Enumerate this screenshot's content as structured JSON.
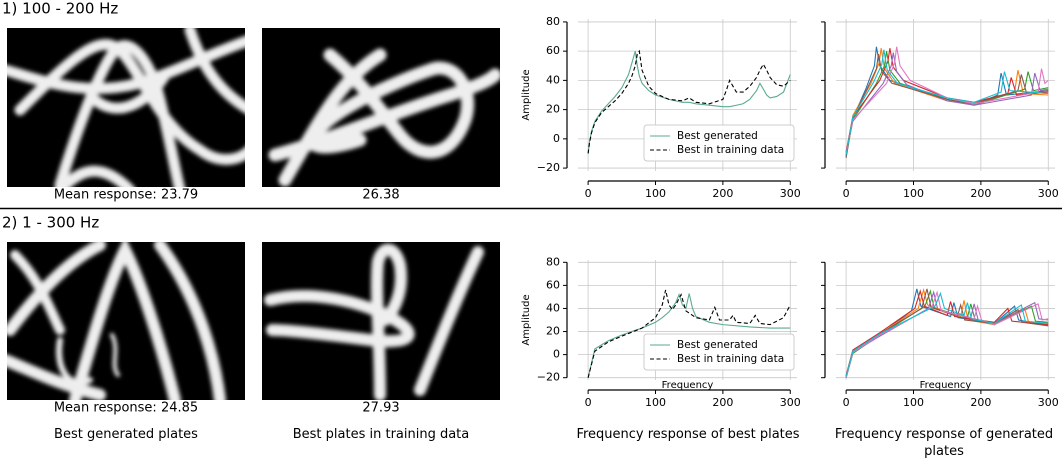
{
  "rows": [
    {
      "label": "1) 100 - 200 Hz",
      "generated_caption": "Mean response: 23.79",
      "training_caption": "26.38"
    },
    {
      "label": "2) 1 - 300 Hz",
      "generated_caption": "Mean response: 24.85",
      "training_caption": "27.93"
    }
  ],
  "column_captions": [
    "Best generated plates",
    "Best plates in training data",
    "Frequency response of best plates",
    "Frequency response of generated plates"
  ],
  "chart_data": [
    {
      "type": "line",
      "ylabel": "Amplitude",
      "xlim": [
        -15,
        310
      ],
      "ylim": [
        -22,
        82
      ],
      "xticks": [
        0,
        100,
        200,
        300
      ],
      "yticks": [
        {
          "value": -20,
          "label": "−20"
        },
        0,
        20,
        40,
        60,
        80
      ],
      "show_ytick_labels": true,
      "grid": true,
      "legend": "lower right",
      "series": [
        {
          "name": "Best generated",
          "color": "#5aab8c",
          "dash": false,
          "x": [
            0,
            2,
            5,
            10,
            20,
            30,
            40,
            50,
            60,
            65,
            70,
            73,
            76,
            80,
            90,
            100,
            120,
            140,
            150,
            160,
            180,
            200,
            205,
            210,
            220,
            230,
            240,
            250,
            255,
            260,
            265,
            270,
            280,
            290,
            300
          ],
          "values": [
            -10,
            -2,
            5,
            12,
            19,
            24,
            29,
            35,
            44,
            52,
            60,
            50,
            43,
            38,
            33,
            30,
            27,
            25,
            25,
            24,
            23,
            22,
            22,
            22,
            23,
            24,
            27,
            33,
            38,
            34,
            30,
            28,
            29,
            32,
            44
          ]
        },
        {
          "name": "Best in training data",
          "color": "#000000",
          "dash": true,
          "x": [
            0,
            2,
            5,
            10,
            20,
            30,
            40,
            50,
            60,
            65,
            70,
            73,
            76,
            80,
            90,
            100,
            120,
            140,
            150,
            160,
            180,
            200,
            205,
            210,
            220,
            230,
            240,
            250,
            255,
            260,
            265,
            270,
            280,
            290,
            300
          ],
          "values": [
            -10,
            -3,
            4,
            11,
            18,
            22,
            26,
            31,
            38,
            43,
            50,
            58,
            60,
            47,
            36,
            31,
            27,
            26,
            28,
            25,
            24,
            27,
            33,
            40,
            32,
            32,
            36,
            42,
            47,
            51,
            47,
            42,
            37,
            36,
            40
          ]
        }
      ]
    },
    {
      "type": "line",
      "xlim": [
        -15,
        310
      ],
      "ylim": [
        -22,
        82
      ],
      "xticks": [
        0,
        100,
        200,
        300
      ],
      "yticks": [
        {
          "value": -20,
          "label": "−20"
        },
        0,
        20,
        40,
        60,
        80
      ],
      "show_ytick_labels": false,
      "grid": true,
      "series": [
        {
          "color": "#1f77b4",
          "x": [
            0,
            10,
            30,
            42,
            45,
            50,
            65,
            150,
            190,
            225,
            230,
            238,
            300
          ],
          "values": [
            -12,
            14,
            35,
            50,
            63,
            50,
            40,
            27,
            23,
            30,
            45,
            30,
            33
          ]
        },
        {
          "color": "#ff7f0e",
          "x": [
            0,
            10,
            37,
            49,
            52,
            57,
            72,
            150,
            190,
            250,
            255,
            263,
            300
          ],
          "values": [
            -10,
            16,
            38,
            52,
            62,
            48,
            38,
            26,
            24,
            32,
            47,
            31,
            30
          ]
        },
        {
          "color": "#2ca02c",
          "x": [
            0,
            10,
            45,
            57,
            60,
            65,
            80,
            150,
            190,
            265,
            270,
            278,
            300
          ],
          "values": [
            -11,
            13,
            38,
            50,
            60,
            47,
            38,
            27,
            23,
            34,
            46,
            33,
            35
          ]
        },
        {
          "color": "#d62728",
          "x": [
            0,
            10,
            50,
            62,
            65,
            70,
            85,
            150,
            190,
            240,
            245,
            253,
            300
          ],
          "values": [
            -9,
            15,
            40,
            53,
            62,
            49,
            40,
            28,
            25,
            31,
            42,
            30,
            32
          ]
        },
        {
          "color": "#9467bd",
          "x": [
            0,
            10,
            55,
            67,
            70,
            75,
            90,
            150,
            190,
            275,
            280,
            288,
            300
          ],
          "values": [
            -10,
            12,
            38,
            50,
            59,
            46,
            37,
            26,
            23,
            30,
            45,
            33,
            34
          ]
        },
        {
          "color": "#8c564b",
          "x": [
            0,
            10,
            33,
            45,
            48,
            53,
            68,
            150,
            190,
            255,
            260,
            268,
            300
          ],
          "values": [
            -13,
            14,
            36,
            48,
            58,
            46,
            38,
            27,
            24,
            33,
            44,
            31,
            33
          ]
        },
        {
          "color": "#e377c2",
          "x": [
            0,
            10,
            60,
            72,
            75,
            80,
            95,
            150,
            190,
            285,
            290,
            295,
            300
          ],
          "values": [
            -10,
            13,
            38,
            52,
            63,
            50,
            40,
            28,
            24,
            32,
            48,
            38,
            40
          ]
        },
        {
          "color": "#17becf",
          "x": [
            0,
            10,
            41,
            53,
            56,
            61,
            76,
            150,
            190,
            230,
            235,
            243,
            300
          ],
          "values": [
            -11,
            15,
            39,
            51,
            61,
            47,
            38,
            28,
            25,
            32,
            46,
            33,
            31
          ]
        }
      ]
    },
    {
      "type": "line",
      "ylabel": "Amplitude",
      "xlabel": "Frequency",
      "xlim": [
        -15,
        310
      ],
      "ylim": [
        -22,
        82
      ],
      "xticks": [
        0,
        100,
        200,
        300
      ],
      "yticks": [
        {
          "value": -20,
          "label": "−20"
        },
        0,
        20,
        40,
        60,
        80
      ],
      "show_ytick_labels": true,
      "grid": true,
      "legend": "lower right",
      "series": [
        {
          "name": "Best generated",
          "color": "#5aab8c",
          "dash": false,
          "x": [
            0,
            10,
            30,
            50,
            80,
            100,
            110,
            120,
            130,
            135,
            140,
            145,
            150,
            155,
            160,
            180,
            200,
            240,
            270,
            300
          ],
          "values": [
            -20,
            5,
            12,
            17,
            23,
            28,
            32,
            37,
            45,
            52,
            43,
            40,
            53,
            40,
            33,
            28,
            26,
            24,
            23,
            23
          ]
        },
        {
          "name": "Best in training data",
          "color": "#000000",
          "dash": true,
          "x": [
            0,
            10,
            30,
            50,
            80,
            100,
            110,
            115,
            120,
            125,
            130,
            138,
            145,
            160,
            180,
            188,
            195,
            210,
            215,
            220,
            240,
            248,
            255,
            270,
            290,
            300
          ],
          "values": [
            -20,
            3,
            11,
            16,
            23,
            32,
            43,
            56,
            43,
            39,
            43,
            52,
            38,
            32,
            30,
            41,
            30,
            30,
            34,
            28,
            27,
            34,
            27,
            26,
            32,
            43
          ]
        }
      ]
    },
    {
      "type": "line",
      "xlabel": "Frequency",
      "xlim": [
        -15,
        310
      ],
      "ylim": [
        -22,
        82
      ],
      "xticks": [
        0,
        100,
        200,
        300
      ],
      "yticks": [
        {
          "value": -20,
          "label": "−20"
        },
        0,
        20,
        40,
        60,
        80
      ],
      "show_ytick_labels": false,
      "grid": true,
      "series": [
        {
          "color": "#1f77b4",
          "x": [
            0,
            10,
            50,
            97,
            105,
            111,
            155,
            160,
            166,
            220,
            250,
            256,
            300
          ],
          "values": [
            -20,
            2,
            17,
            38,
            57,
            42,
            33,
            45,
            32,
            27,
            42,
            30,
            25
          ]
        },
        {
          "color": "#ff7f0e",
          "x": [
            0,
            10,
            50,
            107,
            115,
            121,
            170,
            175,
            181,
            220,
            265,
            271,
            300
          ],
          "values": [
            -19,
            3,
            18,
            40,
            56,
            43,
            33,
            47,
            30,
            26,
            40,
            28,
            27
          ]
        },
        {
          "color": "#2ca02c",
          "x": [
            0,
            10,
            50,
            117,
            125,
            131,
            180,
            185,
            191,
            220,
            275,
            281,
            300
          ],
          "values": [
            -20,
            1,
            17,
            42,
            55,
            40,
            32,
            44,
            31,
            26,
            42,
            29,
            28
          ]
        },
        {
          "color": "#d62728",
          "x": [
            0,
            10,
            50,
            102,
            110,
            116,
            150,
            155,
            161,
            220,
            240,
            246,
            300
          ],
          "values": [
            -18,
            4,
            19,
            40,
            55,
            42,
            34,
            46,
            33,
            28,
            40,
            29,
            26
          ]
        },
        {
          "color": "#9467bd",
          "x": [
            0,
            10,
            50,
            122,
            130,
            136,
            185,
            190,
            196,
            220,
            280,
            286,
            300
          ],
          "values": [
            -20,
            2,
            16,
            40,
            54,
            39,
            32,
            44,
            30,
            27,
            45,
            31,
            30
          ]
        },
        {
          "color": "#8c564b",
          "x": [
            0,
            10,
            50,
            112,
            120,
            126,
            165,
            170,
            176,
            220,
            255,
            261,
            300
          ],
          "values": [
            -19,
            3,
            18,
            40,
            57,
            41,
            33,
            43,
            30,
            27,
            39,
            28,
            25
          ]
        },
        {
          "color": "#e377c2",
          "x": [
            0,
            10,
            50,
            127,
            135,
            141,
            190,
            195,
            201,
            220,
            285,
            291,
            300
          ],
          "values": [
            -20,
            2,
            17,
            41,
            54,
            38,
            31,
            42,
            30,
            26,
            44,
            30,
            31
          ]
        },
        {
          "color": "#17becf",
          "x": [
            0,
            10,
            50,
            132,
            140,
            146,
            175,
            180,
            186,
            220,
            260,
            266,
            300
          ],
          "values": [
            -19,
            3,
            18,
            42,
            53,
            40,
            34,
            45,
            31,
            27,
            43,
            29,
            27
          ]
        }
      ]
    }
  ]
}
